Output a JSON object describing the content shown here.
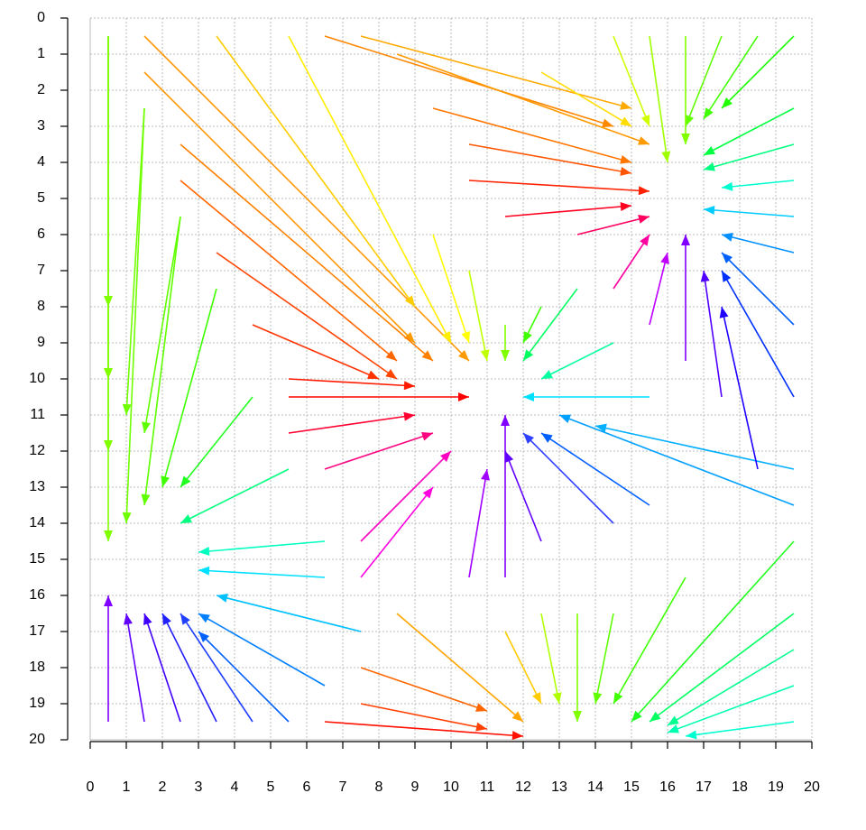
{
  "chart_data": {
    "type": "quiver",
    "xlim": [
      0,
      20
    ],
    "ylim": [
      20,
      0
    ],
    "xticks": [
      0,
      1,
      2,
      3,
      4,
      5,
      6,
      7,
      8,
      9,
      10,
      11,
      12,
      13,
      14,
      15,
      16,
      17,
      18,
      19,
      20
    ],
    "yticks": [
      0,
      1,
      2,
      3,
      4,
      5,
      6,
      7,
      8,
      9,
      10,
      11,
      12,
      13,
      14,
      15,
      16,
      17,
      18,
      19,
      20
    ],
    "grid": true,
    "arrows": [
      {
        "x": [
          0.5,
          0.5
        ],
        "y": [
          0.5,
          14.5
        ],
        "color": "#80ff00"
      },
      {
        "x": [
          0.5,
          0.5
        ],
        "y": [
          0.5,
          12
        ],
        "color": "#80ff00"
      },
      {
        "x": [
          0.5,
          0.5
        ],
        "y": [
          0.5,
          10
        ],
        "color": "#80ff00"
      },
      {
        "x": [
          0.5,
          0.5
        ],
        "y": [
          0.5,
          8
        ],
        "color": "#80ff00"
      },
      {
        "x": [
          1.5,
          1
        ],
        "y": [
          2.5,
          14
        ],
        "color": "#70ff00"
      },
      {
        "x": [
          1.5,
          1
        ],
        "y": [
          2.5,
          11
        ],
        "color": "#70ff00"
      },
      {
        "x": [
          2.5,
          1.5
        ],
        "y": [
          5.5,
          13.5
        ],
        "color": "#60ff00"
      },
      {
        "x": [
          2.5,
          1.5
        ],
        "y": [
          5.5,
          11.5
        ],
        "color": "#60ff00"
      },
      {
        "x": [
          3.5,
          2
        ],
        "y": [
          7.5,
          13
        ],
        "color": "#40ff00"
      },
      {
        "x": [
          4.5,
          2.5
        ],
        "y": [
          10.5,
          13
        ],
        "color": "#20ff20"
      },
      {
        "x": [
          5.5,
          2.5
        ],
        "y": [
          12.5,
          14
        ],
        "color": "#00ff80"
      },
      {
        "x": [
          6.5,
          3
        ],
        "y": [
          14.5,
          14.8
        ],
        "color": "#00ffc0"
      },
      {
        "x": [
          6.5,
          3
        ],
        "y": [
          15.5,
          15.3
        ],
        "color": "#00e0ff"
      },
      {
        "x": [
          0.5,
          0.5
        ],
        "y": [
          19.5,
          16
        ],
        "color": "#8000ff"
      },
      {
        "x": [
          1.5,
          1
        ],
        "y": [
          19.5,
          16.5
        ],
        "color": "#6000ff"
      },
      {
        "x": [
          2.5,
          1.5
        ],
        "y": [
          19.5,
          16.5
        ],
        "color": "#4000ff"
      },
      {
        "x": [
          3.5,
          2
        ],
        "y": [
          19.5,
          16.5
        ],
        "color": "#2020ff"
      },
      {
        "x": [
          4.5,
          2.5
        ],
        "y": [
          19.5,
          16.5
        ],
        "color": "#2040ff"
      },
      {
        "x": [
          5.5,
          3
        ],
        "y": [
          19.5,
          17
        ],
        "color": "#0060ff"
      },
      {
        "x": [
          6.5,
          3
        ],
        "y": [
          18.5,
          16.5
        ],
        "color": "#0080ff"
      },
      {
        "x": [
          7.5,
          3.5
        ],
        "y": [
          17,
          16
        ],
        "color": "#00c0ff"
      },
      {
        "x": [
          1.5,
          10.5
        ],
        "y": [
          0.5,
          9.5
        ],
        "color": "#ff9900"
      },
      {
        "x": [
          1.5,
          9
        ],
        "y": [
          1.5,
          9
        ],
        "color": "#ff9900"
      },
      {
        "x": [
          2.5,
          9.5
        ],
        "y": [
          3.5,
          9.5
        ],
        "color": "#ff8000"
      },
      {
        "x": [
          2.5,
          8.5
        ],
        "y": [
          4.5,
          9.5
        ],
        "color": "#ff6600"
      },
      {
        "x": [
          3.5,
          8.5
        ],
        "y": [
          6.5,
          10
        ],
        "color": "#ff4400"
      },
      {
        "x": [
          4.5,
          8
        ],
        "y": [
          8.5,
          10
        ],
        "color": "#ff3300"
      },
      {
        "x": [
          5.5,
          9
        ],
        "y": [
          10,
          10.2
        ],
        "color": "#ff1a00"
      },
      {
        "x": [
          5.5,
          10.5
        ],
        "y": [
          10.5,
          10.5
        ],
        "color": "#ff0000"
      },
      {
        "x": [
          5.5,
          9
        ],
        "y": [
          11.5,
          11
        ],
        "color": "#ff0030"
      },
      {
        "x": [
          6.5,
          9.5
        ],
        "y": [
          12.5,
          11.5
        ],
        "color": "#ff0080"
      },
      {
        "x": [
          7.5,
          10
        ],
        "y": [
          14.5,
          12
        ],
        "color": "#ff00c0"
      },
      {
        "x": [
          7.5,
          9.5
        ],
        "y": [
          15.5,
          13
        ],
        "color": "#ff00e0"
      },
      {
        "x": [
          10.5,
          11
        ],
        "y": [
          15.5,
          12.5
        ],
        "color": "#a000ff"
      },
      {
        "x": [
          11.5,
          11.5
        ],
        "y": [
          15.5,
          11
        ],
        "color": "#8000ff"
      },
      {
        "x": [
          12.5,
          11.5
        ],
        "y": [
          14.5,
          12
        ],
        "color": "#6000ff"
      },
      {
        "x": [
          14.5,
          12
        ],
        "y": [
          14,
          11.5
        ],
        "color": "#3040ff"
      },
      {
        "x": [
          15.5,
          12.5
        ],
        "y": [
          13.5,
          11.5
        ],
        "color": "#0060ff"
      },
      {
        "x": [
          19.5,
          13
        ],
        "y": [
          13.5,
          11
        ],
        "color": "#00a0ff"
      },
      {
        "x": [
          19.5,
          14
        ],
        "y": [
          12.5,
          11.3
        ],
        "color": "#00b0ff"
      },
      {
        "x": [
          15.5,
          12
        ],
        "y": [
          10.5,
          10.5
        ],
        "color": "#00e0ff"
      },
      {
        "x": [
          14.5,
          12.5
        ],
        "y": [
          9,
          10
        ],
        "color": "#00ffa0"
      },
      {
        "x": [
          13.5,
          12
        ],
        "y": [
          7.5,
          9.5
        ],
        "color": "#00ff60"
      },
      {
        "x": [
          12.5,
          12
        ],
        "y": [
          8,
          9
        ],
        "color": "#40ff00"
      },
      {
        "x": [
          11.5,
          11.5
        ],
        "y": [
          8.5,
          9.5
        ],
        "color": "#80ff00"
      },
      {
        "x": [
          10.5,
          11
        ],
        "y": [
          7,
          9.5
        ],
        "color": "#c0ff00"
      },
      {
        "x": [
          9.5,
          10.5
        ],
        "y": [
          6,
          9
        ],
        "color": "#ffff00"
      },
      {
        "x": [
          5.5,
          10
        ],
        "y": [
          0.5,
          9
        ],
        "color": "#ffee00"
      },
      {
        "x": [
          3.5,
          9
        ],
        "y": [
          0.5,
          8
        ],
        "color": "#ffcc00"
      },
      {
        "x": [
          6.5,
          14.5
        ],
        "y": [
          0.5,
          3
        ],
        "color": "#ff8800"
      },
      {
        "x": [
          7.5,
          15
        ],
        "y": [
          0.5,
          2.5
        ],
        "color": "#ffaa00"
      },
      {
        "x": [
          8.5,
          15.5
        ],
        "y": [
          1,
          3.5
        ],
        "color": "#ff9900"
      },
      {
        "x": [
          9.5,
          15
        ],
        "y": [
          2.5,
          4
        ],
        "color": "#ff7700"
      },
      {
        "x": [
          10.5,
          15
        ],
        "y": [
          3.5,
          4.3
        ],
        "color": "#ff5500"
      },
      {
        "x": [
          10.5,
          15.5
        ],
        "y": [
          4.5,
          4.8
        ],
        "color": "#ff2200"
      },
      {
        "x": [
          11.5,
          15
        ],
        "y": [
          5.5,
          5.2
        ],
        "color": "#ff0020"
      },
      {
        "x": [
          13.5,
          15.5
        ],
        "y": [
          6,
          5.5
        ],
        "color": "#ff0060"
      },
      {
        "x": [
          14.5,
          15.5
        ],
        "y": [
          7.5,
          6
        ],
        "color": "#ff00a0"
      },
      {
        "x": [
          15.5,
          16
        ],
        "y": [
          8.5,
          6.5
        ],
        "color": "#c000ff"
      },
      {
        "x": [
          16.5,
          16.5
        ],
        "y": [
          9.5,
          6
        ],
        "color": "#8000ff"
      },
      {
        "x": [
          17.5,
          17
        ],
        "y": [
          10.5,
          7
        ],
        "color": "#5000ff"
      },
      {
        "x": [
          18.5,
          17.5
        ],
        "y": [
          12.5,
          8
        ],
        "color": "#2000ff"
      },
      {
        "x": [
          19.5,
          17.5
        ],
        "y": [
          10.5,
          7
        ],
        "color": "#0030ff"
      },
      {
        "x": [
          19.5,
          17.5
        ],
        "y": [
          8.5,
          6.5
        ],
        "color": "#0060ff"
      },
      {
        "x": [
          19.5,
          17.5
        ],
        "y": [
          6.5,
          6
        ],
        "color": "#0090ff"
      },
      {
        "x": [
          19.5,
          17
        ],
        "y": [
          5.5,
          5.3
        ],
        "color": "#00ccff"
      },
      {
        "x": [
          19.5,
          17.5
        ],
        "y": [
          4.5,
          4.7
        ],
        "color": "#00ffd0"
      },
      {
        "x": [
          19.5,
          17
        ],
        "y": [
          3.5,
          4.2
        ],
        "color": "#00ff80"
      },
      {
        "x": [
          19.5,
          17
        ],
        "y": [
          2.5,
          3.8
        ],
        "color": "#00ff40"
      },
      {
        "x": [
          19.5,
          17.5
        ],
        "y": [
          0.5,
          2.5
        ],
        "color": "#20ff00"
      },
      {
        "x": [
          18.5,
          17
        ],
        "y": [
          0.5,
          2.8
        ],
        "color": "#40ff00"
      },
      {
        "x": [
          17.5,
          16.5
        ],
        "y": [
          0.5,
          3
        ],
        "color": "#60ff00"
      },
      {
        "x": [
          16.5,
          16.5
        ],
        "y": [
          0.5,
          3.5
        ],
        "color": "#80ff00"
      },
      {
        "x": [
          15.5,
          16
        ],
        "y": [
          0.5,
          4
        ],
        "color": "#a0ff00"
      },
      {
        "x": [
          14.5,
          15.5
        ],
        "y": [
          0.5,
          3
        ],
        "color": "#d0ff00"
      },
      {
        "x": [
          12.5,
          15
        ],
        "y": [
          1.5,
          3
        ],
        "color": "#ffdd00"
      },
      {
        "x": [
          13.5,
          13.5
        ],
        "y": [
          16.5,
          19.5
        ],
        "color": "#80ff00"
      },
      {
        "x": [
          12.5,
          13
        ],
        "y": [
          16.5,
          19
        ],
        "color": "#b0ff00"
      },
      {
        "x": [
          11.5,
          12.5
        ],
        "y": [
          17,
          19
        ],
        "color": "#ffcc00"
      },
      {
        "x": [
          8.5,
          12
        ],
        "y": [
          16.5,
          19.5
        ],
        "color": "#ffa500"
      },
      {
        "x": [
          7.5,
          11
        ],
        "y": [
          18,
          19.2
        ],
        "color": "#ff6600"
      },
      {
        "x": [
          7.5,
          11
        ],
        "y": [
          19,
          19.7
        ],
        "color": "#ff4000"
      },
      {
        "x": [
          6.5,
          12
        ],
        "y": [
          19.5,
          19.9
        ],
        "color": "#ff1000"
      },
      {
        "x": [
          14.5,
          14
        ],
        "y": [
          16.5,
          19
        ],
        "color": "#60ff00"
      },
      {
        "x": [
          16.5,
          14.5
        ],
        "y": [
          15.5,
          19
        ],
        "color": "#40ff00"
      },
      {
        "x": [
          19.5,
          15
        ],
        "y": [
          14.5,
          19.5
        ],
        "color": "#20ff20"
      },
      {
        "x": [
          19.5,
          15.5
        ],
        "y": [
          16.5,
          19.5
        ],
        "color": "#00ff60"
      },
      {
        "x": [
          19.5,
          16
        ],
        "y": [
          17.5,
          19.6
        ],
        "color": "#00ff90"
      },
      {
        "x": [
          19.5,
          16
        ],
        "y": [
          18.5,
          19.8
        ],
        "color": "#00ffb0"
      },
      {
        "x": [
          19.5,
          16.5
        ],
        "y": [
          19.5,
          19.9
        ],
        "color": "#00ffd0"
      }
    ]
  }
}
